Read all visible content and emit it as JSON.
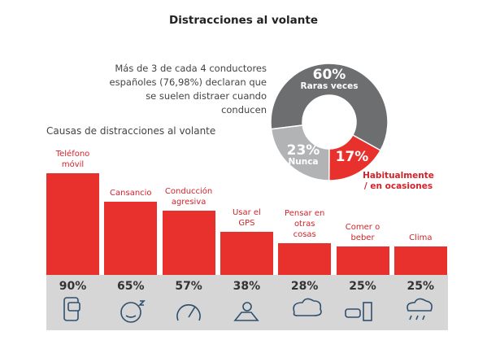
{
  "title": "Distracciones al volante",
  "chart_data": [
    {
      "type": "pie",
      "annotation": "Más de 3 de cada 4 conductores españoles (76,98%) declaran que se suelen distraer cuando conducen",
      "categories": [
        "Raras veces",
        "Habitualmente / en ocasiones",
        "Nunca"
      ],
      "values": [
        60,
        17,
        23
      ],
      "value_labels": [
        "60%",
        "17%",
        "23%"
      ],
      "colors": [
        "#6d6e70",
        "#e8312d",
        "#b1b3b5"
      ]
    },
    {
      "type": "bar",
      "title": "Causas de distracciones al volante",
      "categories": [
        "Teléfono móvil",
        "Cansancio",
        "Conducción agresiva",
        "Usar el GPS",
        "Pensar en otras cosas",
        "Comer o beber",
        "Clima"
      ],
      "values": [
        90,
        65,
        57,
        38,
        28,
        25,
        25
      ],
      "value_labels": [
        "90%",
        "65%",
        "57%",
        "38%",
        "28%",
        "25%",
        "25%"
      ],
      "color": "#e8312d"
    }
  ]
}
